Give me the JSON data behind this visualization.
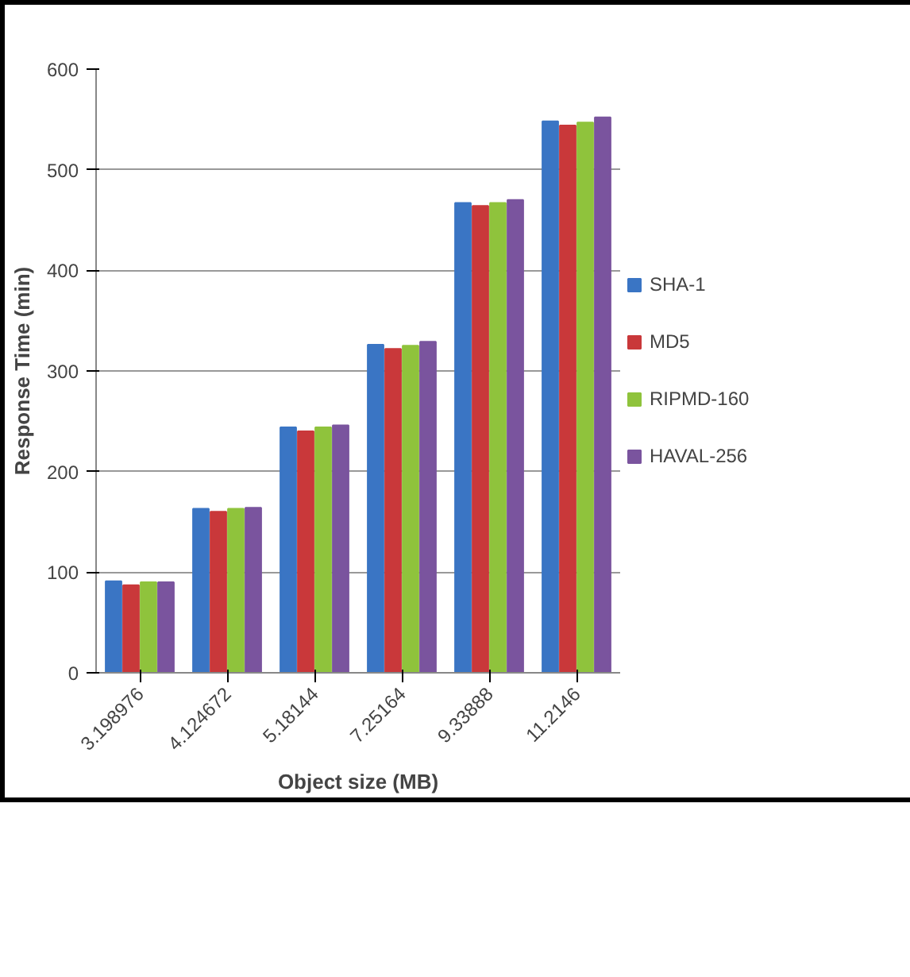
{
  "chart_data": {
    "type": "bar",
    "xlabel": "Object size (MB)",
    "ylabel": "Response Time (min)",
    "categories": [
      "3.198976",
      "4.124672",
      "5.18144",
      "7.25164",
      "9.33888",
      "11.2146"
    ],
    "series": [
      {
        "name": "SHA-1",
        "color": "#3a75c4",
        "values": [
          91,
          163,
          244,
          326,
          467,
          548
        ]
      },
      {
        "name": "MD5",
        "color": "#c9383a",
        "values": [
          87,
          160,
          240,
          322,
          464,
          544
        ]
      },
      {
        "name": "RIPMD-160",
        "color": "#8fc33c",
        "values": [
          90,
          163,
          244,
          325,
          467,
          547
        ]
      },
      {
        "name": "HAVAL-256",
        "color": "#7a549e",
        "values": [
          90,
          164,
          246,
          329,
          470,
          552
        ]
      }
    ],
    "ylim": [
      0,
      600
    ],
    "yticks": [
      0,
      100,
      200,
      300,
      400,
      500,
      600
    ],
    "grid": "y",
    "legend": "right"
  }
}
